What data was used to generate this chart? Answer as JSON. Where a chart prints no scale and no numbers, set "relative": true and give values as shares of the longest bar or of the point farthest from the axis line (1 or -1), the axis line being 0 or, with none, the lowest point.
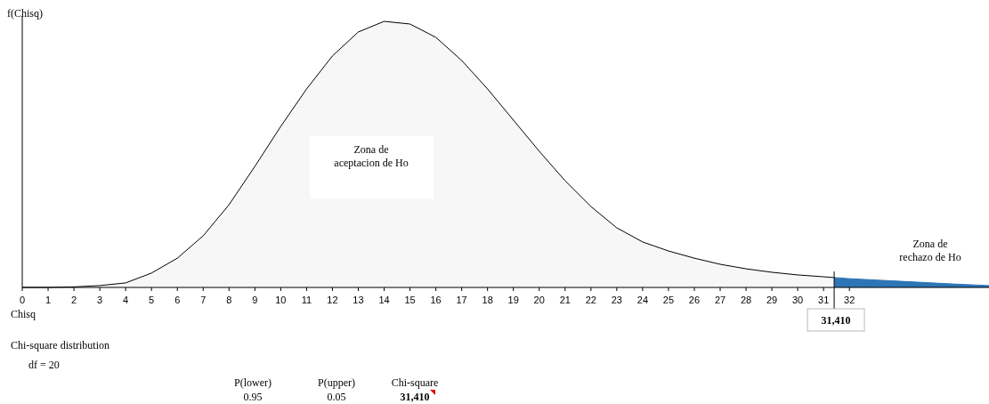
{
  "chart_data": {
    "type": "area",
    "relative": true,
    "ylabel": "f(Chisq)",
    "xlabel": "Chisq",
    "xlim": [
      0,
      37.4
    ],
    "xticks": [
      0,
      1,
      2,
      3,
      4,
      5,
      6,
      7,
      8,
      9,
      10,
      11,
      12,
      13,
      14,
      15,
      16,
      17,
      18,
      19,
      20,
      21,
      22,
      23,
      24,
      25,
      26,
      27,
      28,
      29,
      30,
      31,
      32
    ],
    "series": [
      {
        "color": "#f7f7f7",
        "x": [
          0,
          1,
          2,
          3,
          4,
          5,
          6,
          7,
          8,
          9,
          10,
          11,
          12,
          13,
          14,
          15,
          16,
          17,
          18,
          19,
          20,
          21,
          22,
          23,
          24,
          25,
          26,
          27,
          28,
          29,
          30,
          31,
          31.41
        ],
        "values": [
          0,
          0,
          0.002,
          0.007,
          0.017,
          0.054,
          0.11,
          0.194,
          0.311,
          0.455,
          0.605,
          0.746,
          0.87,
          0.96,
          1,
          0.99,
          0.94,
          0.853,
          0.746,
          0.629,
          0.512,
          0.401,
          0.304,
          0.224,
          0.171,
          0.137,
          0.11,
          0.087,
          0.07,
          0.057,
          0.047,
          0.04,
          0.037
        ]
      },
      {
        "color": "#2e75b6",
        "x": [
          31.41,
          32,
          34,
          36,
          37.4
        ],
        "values": [
          0.037,
          0.033,
          0.023,
          0.013,
          0.007
        ]
      }
    ],
    "ref_lines": [
      {
        "axis": "x",
        "value": 31.41,
        "label": "31,410",
        "color": "#000000"
      }
    ],
    "annotations": [
      "Zona de\naceptacion de Ho",
      "Zona de\nrechazo de Ho",
      "Chi-square distribution",
      "df = 20",
      "P(lower)",
      "P(upper)",
      "Chi-square",
      "0.95",
      "0.05",
      "31,410"
    ]
  }
}
